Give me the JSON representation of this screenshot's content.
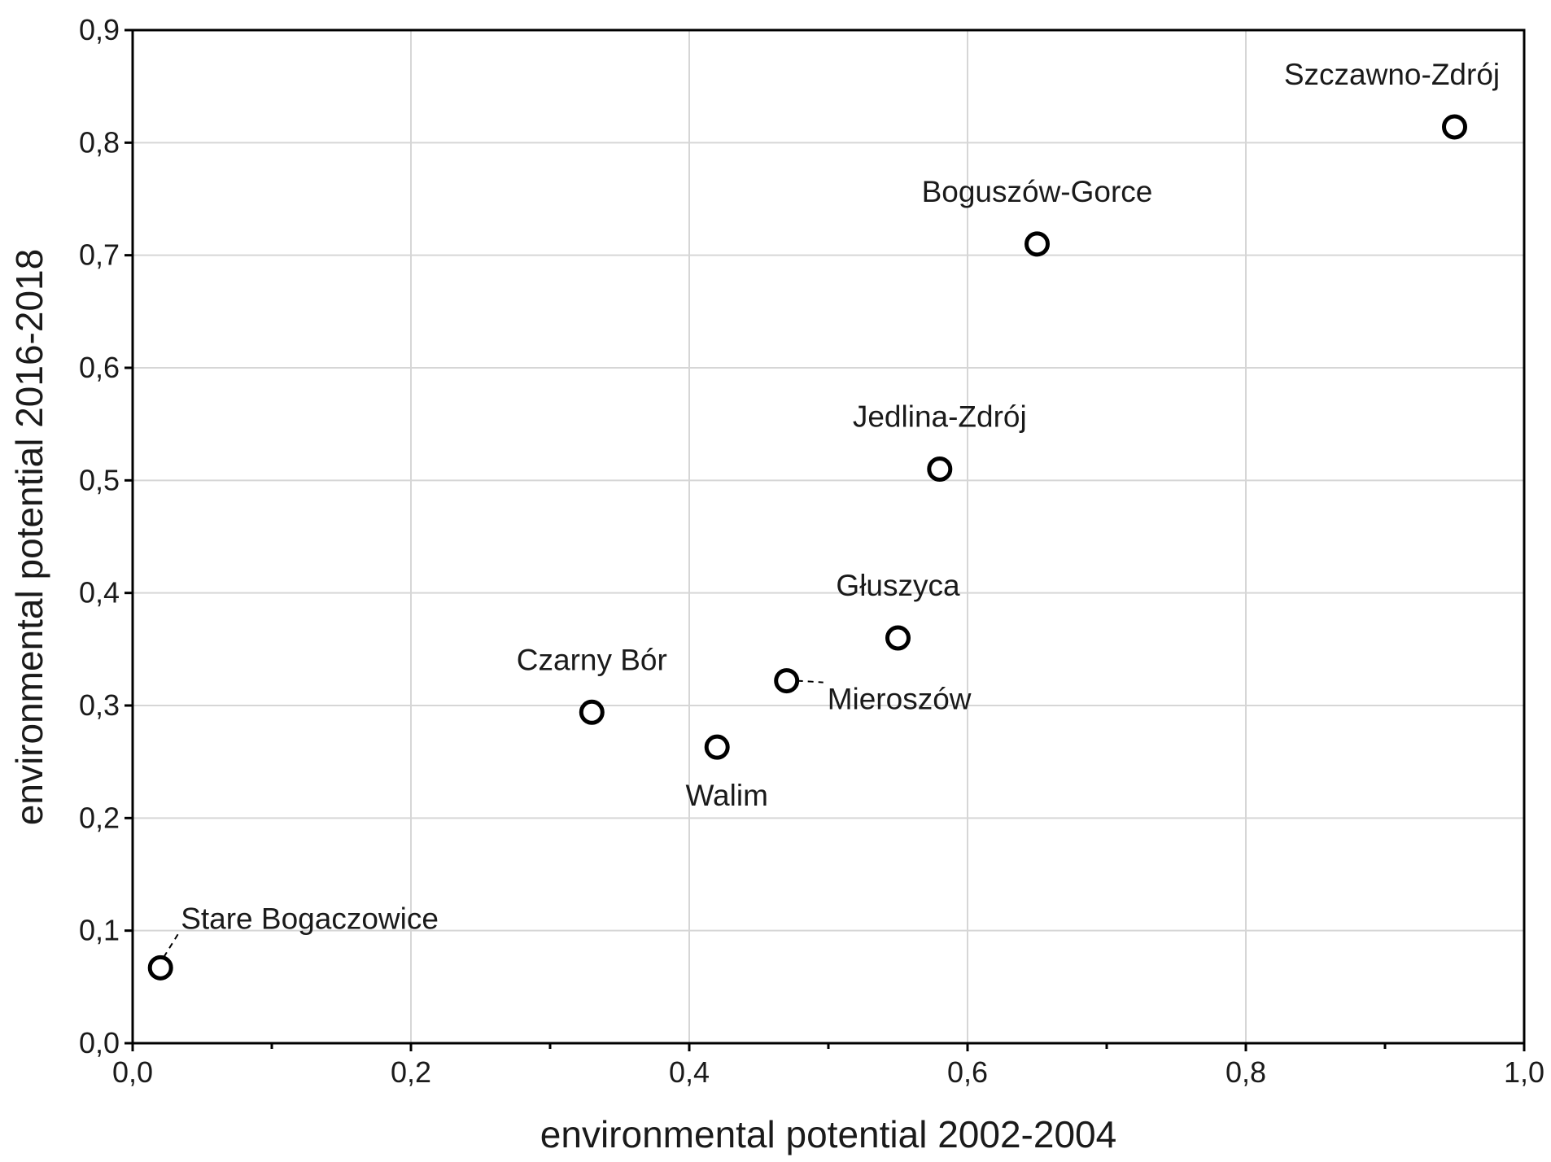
{
  "chart_data": {
    "type": "scatter",
    "title": "",
    "xlabel": "environmental potential 2002-2004",
    "ylabel": "environmental potential 2016-2018",
    "xlim": [
      0.0,
      1.0
    ],
    "ylim": [
      0.0,
      0.9
    ],
    "grid": true,
    "x_ticks": [
      0.0,
      0.2,
      0.4,
      0.6,
      0.8,
      1.0
    ],
    "x_tick_labels": [
      "0,0",
      "0,2",
      "0,4",
      "0,6",
      "0,8",
      "1,0"
    ],
    "y_ticks": [
      0.0,
      0.1,
      0.2,
      0.3,
      0.4,
      0.5,
      0.6,
      0.7,
      0.8,
      0.9
    ],
    "y_tick_labels": [
      "0,0",
      "0,1",
      "0,2",
      "0,3",
      "0,4",
      "0,5",
      "0,6",
      "0,7",
      "0,8",
      "0,9"
    ],
    "points": [
      {
        "label": "Szczawno-Zdrój",
        "x": 0.95,
        "y": 0.814,
        "label_pos": "above-left"
      },
      {
        "label": "Boguszów-Gorce",
        "x": 0.65,
        "y": 0.71,
        "label_pos": "above"
      },
      {
        "label": "Jedlina-Zdrój",
        "x": 0.58,
        "y": 0.51,
        "label_pos": "above"
      },
      {
        "label": "Głuszyca",
        "x": 0.55,
        "y": 0.36,
        "label_pos": "above"
      },
      {
        "label": "Mieroszów",
        "x": 0.47,
        "y": 0.322,
        "label_pos": "below-right",
        "leader": true
      },
      {
        "label": "Czarny Bór",
        "x": 0.33,
        "y": 0.294,
        "label_pos": "above"
      },
      {
        "label": "Walim",
        "x": 0.42,
        "y": 0.263,
        "label_pos": "below"
      },
      {
        "label": "Stare Bogaczowice",
        "x": 0.02,
        "y": 0.067,
        "label_pos": "above-right",
        "leader": true
      }
    ]
  }
}
